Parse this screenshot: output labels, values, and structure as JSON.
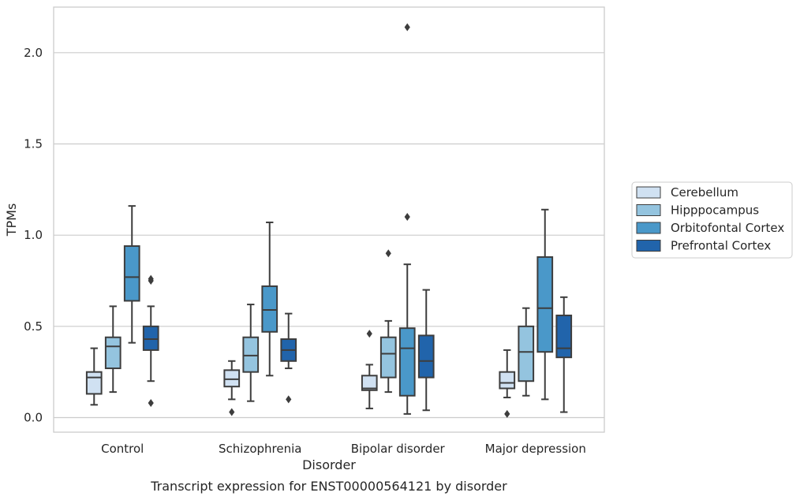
{
  "chart_data": {
    "type": "box",
    "caption": "Transcript expression for ENST00000564121 by disorder",
    "xlabel": "Disorder",
    "ylabel": "TPMs",
    "ylim": [
      -0.08,
      2.25
    ],
    "yticks": [
      0.0,
      0.5,
      1.0,
      1.5,
      2.0
    ],
    "ytick_labels": [
      "0.0",
      "0.5",
      "1.0",
      "1.5",
      "2.0"
    ],
    "grid": true,
    "legend_position": "right",
    "categories": [
      "Control",
      "Schizophrenia",
      "Bipolar disorder",
      "Major depression"
    ],
    "series": [
      {
        "name": "Cerebellum",
        "color": "#d0e1f2",
        "boxes": [
          {
            "whislo": 0.07,
            "q1": 0.13,
            "med": 0.22,
            "q3": 0.25,
            "whishi": 0.38,
            "fliers": []
          },
          {
            "whislo": 0.1,
            "q1": 0.17,
            "med": 0.21,
            "q3": 0.26,
            "whishi": 0.31,
            "fliers": [
              0.03
            ]
          },
          {
            "whislo": 0.05,
            "q1": 0.15,
            "med": 0.16,
            "q3": 0.23,
            "whishi": 0.29,
            "fliers": [
              0.46
            ]
          },
          {
            "whislo": 0.11,
            "q1": 0.16,
            "med": 0.19,
            "q3": 0.25,
            "whishi": 0.37,
            "fliers": [
              0.02
            ]
          }
        ]
      },
      {
        "name": "Hipppocampus",
        "color": "#94c4df",
        "boxes": [
          {
            "whislo": 0.14,
            "q1": 0.27,
            "med": 0.39,
            "q3": 0.44,
            "whishi": 0.61,
            "fliers": []
          },
          {
            "whislo": 0.09,
            "q1": 0.25,
            "med": 0.34,
            "q3": 0.44,
            "whishi": 0.62,
            "fliers": []
          },
          {
            "whislo": 0.14,
            "q1": 0.22,
            "med": 0.35,
            "q3": 0.44,
            "whishi": 0.53,
            "fliers": [
              0.9
            ]
          },
          {
            "whislo": 0.12,
            "q1": 0.2,
            "med": 0.36,
            "q3": 0.5,
            "whishi": 0.6,
            "fliers": []
          }
        ]
      },
      {
        "name": "Orbitofontal Cortex",
        "color": "#4a98c9",
        "boxes": [
          {
            "whislo": 0.41,
            "q1": 0.64,
            "med": 0.77,
            "q3": 0.94,
            "whishi": 1.16,
            "fliers": []
          },
          {
            "whislo": 0.23,
            "q1": 0.47,
            "med": 0.59,
            "q3": 0.72,
            "whishi": 1.07,
            "fliers": []
          },
          {
            "whislo": 0.02,
            "q1": 0.12,
            "med": 0.38,
            "q3": 0.49,
            "whishi": 0.84,
            "fliers": [
              1.1,
              2.14
            ]
          },
          {
            "whislo": 0.1,
            "q1": 0.36,
            "med": 0.6,
            "q3": 0.88,
            "whishi": 1.14,
            "fliers": []
          }
        ]
      },
      {
        "name": "Prefrontal Cortex",
        "color": "#2164ab",
        "boxes": [
          {
            "whislo": 0.2,
            "q1": 0.37,
            "med": 0.43,
            "q3": 0.5,
            "whishi": 0.61,
            "fliers": [
              0.08,
              0.75,
              0.76
            ]
          },
          {
            "whislo": 0.27,
            "q1": 0.31,
            "med": 0.37,
            "q3": 0.43,
            "whishi": 0.57,
            "fliers": [
              0.1
            ]
          },
          {
            "whislo": 0.04,
            "q1": 0.22,
            "med": 0.31,
            "q3": 0.45,
            "whishi": 0.7,
            "fliers": []
          },
          {
            "whislo": 0.03,
            "q1": 0.33,
            "med": 0.38,
            "q3": 0.56,
            "whishi": 0.66,
            "fliers": []
          }
        ]
      }
    ],
    "outlier_color_note_free": true
  }
}
